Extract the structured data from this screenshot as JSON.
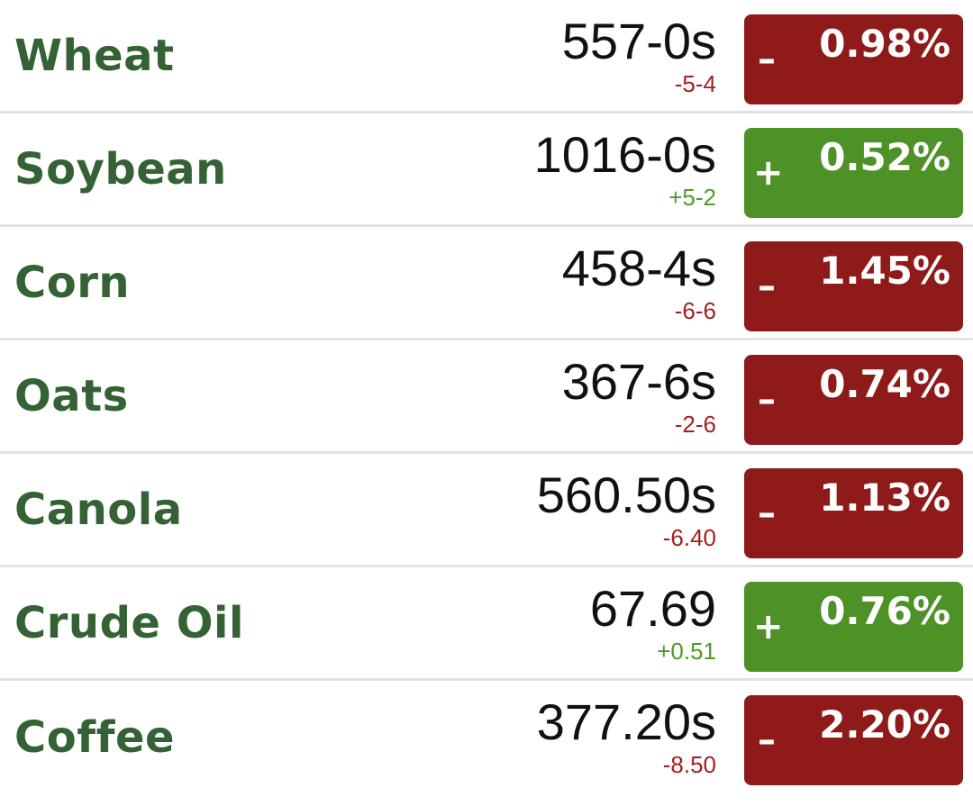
{
  "colors": {
    "name_text": "#356235",
    "down_badge": "#8e1b1a",
    "up_badge": "#4e9127",
    "down_text": "#a3201d",
    "up_text": "#4f9a2a"
  },
  "rows": [
    {
      "name": "Wheat",
      "price": "557-0s",
      "change": "-5-4",
      "direction": "down",
      "sign": "–",
      "percent": "0.98%"
    },
    {
      "name": "Soybean",
      "price": "1016-0s",
      "change": "+5-2",
      "direction": "up",
      "sign": "+",
      "percent": "0.52%"
    },
    {
      "name": "Corn",
      "price": "458-4s",
      "change": "-6-6",
      "direction": "down",
      "sign": "–",
      "percent": "1.45%"
    },
    {
      "name": "Oats",
      "price": "367-6s",
      "change": "-2-6",
      "direction": "down",
      "sign": "–",
      "percent": "0.74%"
    },
    {
      "name": "Canola",
      "price": "560.50s",
      "change": "-6.40",
      "direction": "down",
      "sign": "–",
      "percent": "1.13%"
    },
    {
      "name": "Crude Oil",
      "price": "67.69",
      "change": "+0.51",
      "direction": "up",
      "sign": "+",
      "percent": "0.76%"
    },
    {
      "name": "Coffee",
      "price": "377.20s",
      "change": "-8.50",
      "direction": "down",
      "sign": "–",
      "percent": "2.20%"
    }
  ]
}
